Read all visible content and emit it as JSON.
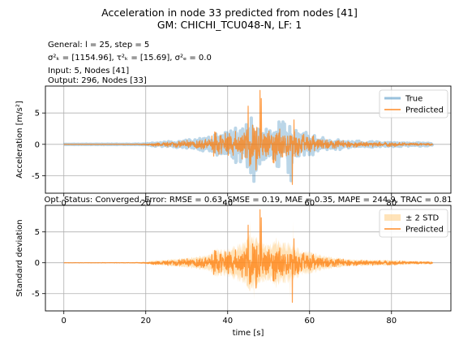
{
  "figure": {
    "title_line1": "Acceleration in node 33 predicted from nodes [41]",
    "title_line2": "GM: CHICHI_TCU048-N, LF: 1",
    "info": {
      "general": "General: l = 25, step = 5",
      "sigma": "σ²ₖ = [1154.96], τ²ₖ = [15.69], σ²ₑ = 0.0",
      "input": "Input: 5, Nodes [41]",
      "output": "Output: 296, Nodes [33]"
    }
  },
  "chart_data": [
    {
      "type": "line",
      "title": "",
      "xlabel": "",
      "ylabel": "Acceleration [m/s²]",
      "xlim": [
        -4.5,
        94.5
      ],
      "ylim": [
        -7.8,
        9.3
      ],
      "xticks": [
        0,
        20,
        40,
        60,
        80
      ],
      "yticks": [
        -5,
        0,
        5
      ],
      "x_range": [
        0,
        90
      ],
      "grid": true,
      "legend": "top-right",
      "series": [
        {
          "name": "True",
          "color": "#1f77b4",
          "alpha": 0.3,
          "linewidth": 4,
          "envelope": [
            [
              0,
              0.03
            ],
            [
              10,
              0.04
            ],
            [
              17,
              0.05
            ],
            [
              20,
              0.08
            ],
            [
              22,
              0.35
            ],
            [
              25,
              0.5
            ],
            [
              28,
              0.7
            ],
            [
              31,
              0.9
            ],
            [
              34,
              1.3
            ],
            [
              36,
              1.5
            ],
            [
              37,
              2.6
            ],
            [
              38,
              2.2
            ],
            [
              40,
              2.5
            ],
            [
              42,
              3.4
            ],
            [
              44,
              3.8
            ],
            [
              45.5,
              5.2
            ],
            [
              47,
              4.8
            ],
            [
              48,
              3.9
            ],
            [
              50,
              3.2
            ],
            [
              52,
              4.6
            ],
            [
              54,
              3.8
            ],
            [
              56,
              3.3
            ],
            [
              58,
              2.2
            ],
            [
              60,
              2.0
            ],
            [
              63,
              1.3
            ],
            [
              66,
              1.0
            ],
            [
              70,
              0.6
            ],
            [
              75,
              0.5
            ],
            [
              80,
              0.45
            ],
            [
              85,
              0.3
            ],
            [
              90,
              0.25
            ]
          ],
          "peaks": [
            [
              45.8,
              4.2
            ],
            [
              46.4,
              -5.9
            ],
            [
              47.0,
              -3.8
            ],
            [
              54.8,
              -4.5
            ],
            [
              55.5,
              -5.8
            ],
            [
              52.8,
              3.2
            ]
          ]
        },
        {
          "name": "Predicted",
          "color": "#ff7f0e",
          "alpha": 0.75,
          "linewidth": 1.2,
          "envelope": [
            [
              0,
              0.02
            ],
            [
              10,
              0.03
            ],
            [
              17,
              0.05
            ],
            [
              20,
              0.1
            ],
            [
              22,
              0.35
            ],
            [
              25,
              0.45
            ],
            [
              28,
              0.6
            ],
            [
              31,
              0.8
            ],
            [
              34,
              1.0
            ],
            [
              36,
              1.3
            ],
            [
              37,
              2.4
            ],
            [
              38,
              1.8
            ],
            [
              40,
              2.0
            ],
            [
              42,
              2.6
            ],
            [
              44,
              3.0
            ],
            [
              45.5,
              4.0
            ],
            [
              47,
              3.6
            ],
            [
              48,
              3.0
            ],
            [
              50,
              2.6
            ],
            [
              52,
              3.5
            ],
            [
              54,
              3.0
            ],
            [
              56,
              2.6
            ],
            [
              58,
              1.8
            ],
            [
              60,
              1.6
            ],
            [
              63,
              1.1
            ],
            [
              66,
              0.8
            ],
            [
              70,
              0.5
            ],
            [
              75,
              0.45
            ],
            [
              80,
              0.4
            ],
            [
              85,
              0.25
            ],
            [
              90,
              0.2
            ]
          ],
          "peaks": [
            [
              47.9,
              8.6
            ],
            [
              48.2,
              7.3
            ],
            [
              45.0,
              6.1
            ],
            [
              55.8,
              -6.4
            ],
            [
              56.2,
              3.9
            ],
            [
              46.9,
              -4.1
            ]
          ]
        }
      ]
    },
    {
      "type": "line",
      "title": "Opt. Status: Converged, Error: RMSE = 0.63, SMSE = 0.19, MAE = 0.35, MAPE = 244.9, TRAC = 0.81",
      "xlabel": "time [s]",
      "ylabel": "Standard deviation",
      "xlim": [
        -4.5,
        94.5
      ],
      "ylim": [
        -7.8,
        9.3
      ],
      "xticks": [
        0,
        20,
        40,
        60,
        80
      ],
      "yticks": [
        -5,
        0,
        5
      ],
      "x_range": [
        0,
        90
      ],
      "grid": true,
      "legend": "top-right",
      "series": [
        {
          "name": "± 2 STD",
          "color": "#ffd08a",
          "alpha": 0.6,
          "kind": "band",
          "band_peaks": [
            [
              45.6,
              6.8
            ],
            [
              55.9,
              6.6
            ],
            [
              46.4,
              -6.0
            ],
            [
              55.3,
              -5.9
            ]
          ]
        },
        {
          "name": "Predicted",
          "color": "#ff7f0e",
          "alpha": 0.75,
          "linewidth": 1.2,
          "envelope": [
            [
              0,
              0.02
            ],
            [
              10,
              0.03
            ],
            [
              17,
              0.05
            ],
            [
              20,
              0.1
            ],
            [
              22,
              0.35
            ],
            [
              25,
              0.45
            ],
            [
              28,
              0.6
            ],
            [
              31,
              0.8
            ],
            [
              34,
              1.0
            ],
            [
              36,
              1.3
            ],
            [
              37,
              2.4
            ],
            [
              38,
              1.8
            ],
            [
              40,
              2.0
            ],
            [
              42,
              2.6
            ],
            [
              44,
              3.0
            ],
            [
              45.5,
              4.0
            ],
            [
              47,
              3.6
            ],
            [
              48,
              3.0
            ],
            [
              50,
              2.6
            ],
            [
              52,
              3.5
            ],
            [
              54,
              3.0
            ],
            [
              56,
              2.6
            ],
            [
              58,
              1.8
            ],
            [
              60,
              1.6
            ],
            [
              63,
              1.1
            ],
            [
              66,
              0.8
            ],
            [
              70,
              0.5
            ],
            [
              75,
              0.45
            ],
            [
              80,
              0.4
            ],
            [
              85,
              0.25
            ],
            [
              90,
              0.2
            ]
          ],
          "peaks": [
            [
              47.9,
              8.6
            ],
            [
              48.2,
              7.3
            ],
            [
              45.0,
              6.1
            ],
            [
              55.8,
              -6.4
            ],
            [
              56.2,
              3.9
            ],
            [
              46.9,
              -4.1
            ]
          ]
        }
      ]
    }
  ]
}
